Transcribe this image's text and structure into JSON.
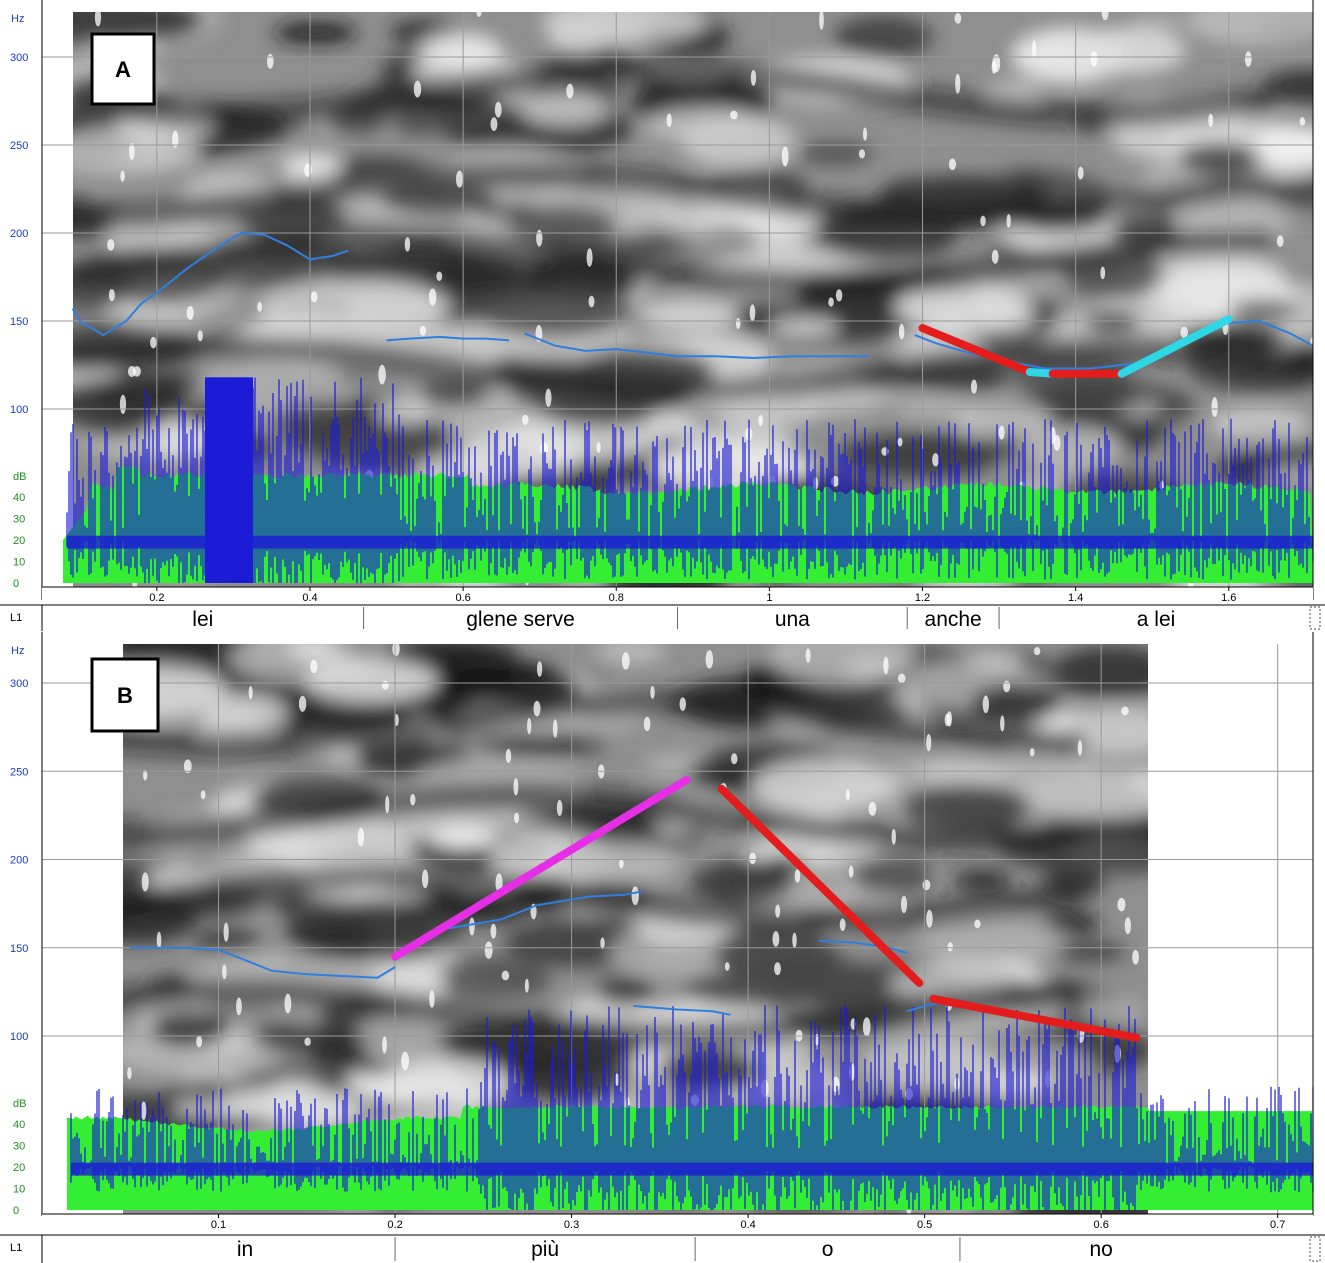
{
  "chart_data": [
    {
      "type": "line",
      "panel_label": "A",
      "y_unit": "Hz",
      "db_unit": "dB",
      "tier_label": "L1",
      "yticks": [
        100,
        150,
        200,
        250,
        300
      ],
      "ylim": [
        50,
        330
      ],
      "db_ticks": [
        0,
        10,
        20,
        30,
        40
      ],
      "xticks": [
        0.2,
        0.4,
        0.6,
        0.8,
        1.0,
        1.2,
        1.4,
        1.6
      ],
      "xtick_labels": [
        "0.2",
        "0.4",
        "0.6",
        "0.8",
        "1",
        "1.2",
        "1.4",
        "1.6"
      ],
      "xlim": [
        0.05,
        1.71
      ],
      "grid": true,
      "segments": [
        {
          "label": "lei",
          "start": 0.05,
          "end": 0.47
        },
        {
          "label": "glene serve",
          "start": 0.47,
          "end": 0.88
        },
        {
          "label": "una",
          "start": 0.88,
          "end": 1.18
        },
        {
          "label": "anche",
          "start": 1.18,
          "end": 1.3
        },
        {
          "label": "a lei",
          "start": 1.3,
          "end": 1.71
        }
      ],
      "pitch_contours": [
        {
          "color": "#2f7fe0",
          "points": [
            [
              0.09,
              157
            ],
            [
              0.1,
              150
            ],
            [
              0.13,
              142
            ],
            [
              0.16,
              150
            ],
            [
              0.18,
              160
            ],
            [
              0.2,
              166
            ],
            [
              0.24,
              180
            ],
            [
              0.28,
              192
            ],
            [
              0.31,
              200
            ],
            [
              0.34,
              199
            ],
            [
              0.37,
              193
            ],
            [
              0.4,
              185
            ],
            [
              0.43,
              187
            ],
            [
              0.45,
              190
            ]
          ]
        },
        {
          "color": "#2f7fe0",
          "points": [
            [
              0.5,
              139
            ],
            [
              0.53,
              140
            ],
            [
              0.57,
              141
            ],
            [
              0.6,
              140
            ],
            [
              0.63,
              140
            ],
            [
              0.66,
              139
            ]
          ]
        },
        {
          "color": "#2f7fe0",
          "points": [
            [
              0.68,
              143
            ],
            [
              0.72,
              136
            ],
            [
              0.76,
              133
            ],
            [
              0.8,
              134
            ],
            [
              0.84,
              132
            ],
            [
              0.88,
              130
            ],
            [
              0.93,
              130
            ],
            [
              0.98,
              129
            ],
            [
              1.03,
              130
            ],
            [
              1.09,
              130
            ],
            [
              1.13,
              130
            ]
          ]
        },
        {
          "color": "#2f7fe0",
          "points": [
            [
              1.19,
              142
            ],
            [
              1.22,
              137
            ],
            [
              1.26,
              132
            ],
            [
              1.3,
              128
            ],
            [
              1.36,
              123
            ],
            [
              1.42,
              123
            ],
            [
              1.48,
              126
            ],
            [
              1.52,
              133
            ],
            [
              1.56,
              143
            ],
            [
              1.6,
              149
            ],
            [
              1.64,
              150
            ],
            [
              1.68,
              143
            ],
            [
              1.71,
              136
            ]
          ]
        }
      ],
      "stylized_lines": [
        {
          "color": "#e31c1c",
          "points": [
            [
              1.2,
              146
            ],
            [
              1.34,
              121
            ]
          ]
        },
        {
          "color": "#2fd6e6",
          "points": [
            [
              1.34,
              121
            ],
            [
              1.37,
              120
            ]
          ]
        },
        {
          "color": "#e31c1c",
          "points": [
            [
              1.37,
              120
            ],
            [
              1.46,
              120
            ]
          ]
        },
        {
          "color": "#2fd6e6",
          "points": [
            [
              1.46,
              120
            ],
            [
              1.6,
              151
            ]
          ]
        }
      ]
    },
    {
      "type": "line",
      "panel_label": "B",
      "y_unit": "Hz",
      "db_unit": "dB",
      "tier_label": "L1",
      "yticks": [
        100,
        150,
        200,
        250,
        300
      ],
      "ylim": [
        50,
        330
      ],
      "db_ticks": [
        0,
        10,
        20,
        30,
        40
      ],
      "xticks": [
        0.1,
        0.2,
        0.3,
        0.4,
        0.5,
        0.6,
        0.7
      ],
      "xtick_labels": [
        "0.1",
        "0.2",
        "0.3",
        "0.4",
        "0.5",
        "0.6",
        "0.7"
      ],
      "xlim": [
        0.0,
        0.72
      ],
      "grid": true,
      "segments": [
        {
          "label": "in",
          "start": 0.03,
          "end": 0.2
        },
        {
          "label": "più",
          "start": 0.2,
          "end": 0.37
        },
        {
          "label": "o",
          "start": 0.37,
          "end": 0.52
        },
        {
          "label": "no",
          "start": 0.52,
          "end": 0.68
        }
      ],
      "pitch_contours": [
        {
          "color": "#2f7fe0",
          "points": [
            [
              0.05,
              150
            ],
            [
              0.08,
              150
            ],
            [
              0.1,
              149
            ],
            [
              0.115,
              143
            ],
            [
              0.13,
              137
            ],
            [
              0.15,
              135
            ],
            [
              0.17,
              134
            ],
            [
              0.19,
              133
            ],
            [
              0.2,
              139
            ]
          ]
        },
        {
          "color": "#2f7fe0",
          "points": [
            [
              0.23,
              161
            ],
            [
              0.26,
              166
            ],
            [
              0.28,
              174
            ],
            [
              0.31,
              179
            ],
            [
              0.33,
              180
            ],
            [
              0.34,
              182
            ]
          ]
        },
        {
          "color": "#2f7fe0",
          "points": [
            [
              0.335,
              117
            ],
            [
              0.36,
              115
            ],
            [
              0.38,
              114
            ],
            [
              0.39,
              112
            ]
          ]
        },
        {
          "color": "#2f7fe0",
          "points": [
            [
              0.44,
              154
            ],
            [
              0.46,
              153
            ],
            [
              0.48,
              150
            ],
            [
              0.49,
              147
            ]
          ]
        },
        {
          "color": "#2f7fe0",
          "points": [
            [
              0.49,
              114
            ],
            [
              0.5,
              117
            ],
            [
              0.51,
              119
            ]
          ]
        }
      ],
      "stylized_lines": [
        {
          "color": "#e62ee6",
          "points": [
            [
              0.2,
              145
            ],
            [
              0.365,
              245
            ]
          ]
        },
        {
          "color": "#e31c1c",
          "points": [
            [
              0.385,
              240
            ],
            [
              0.497,
              130
            ]
          ]
        },
        {
          "color": "#e31c1c",
          "points": [
            [
              0.505,
              121
            ],
            [
              0.62,
              99
            ]
          ]
        }
      ]
    }
  ]
}
